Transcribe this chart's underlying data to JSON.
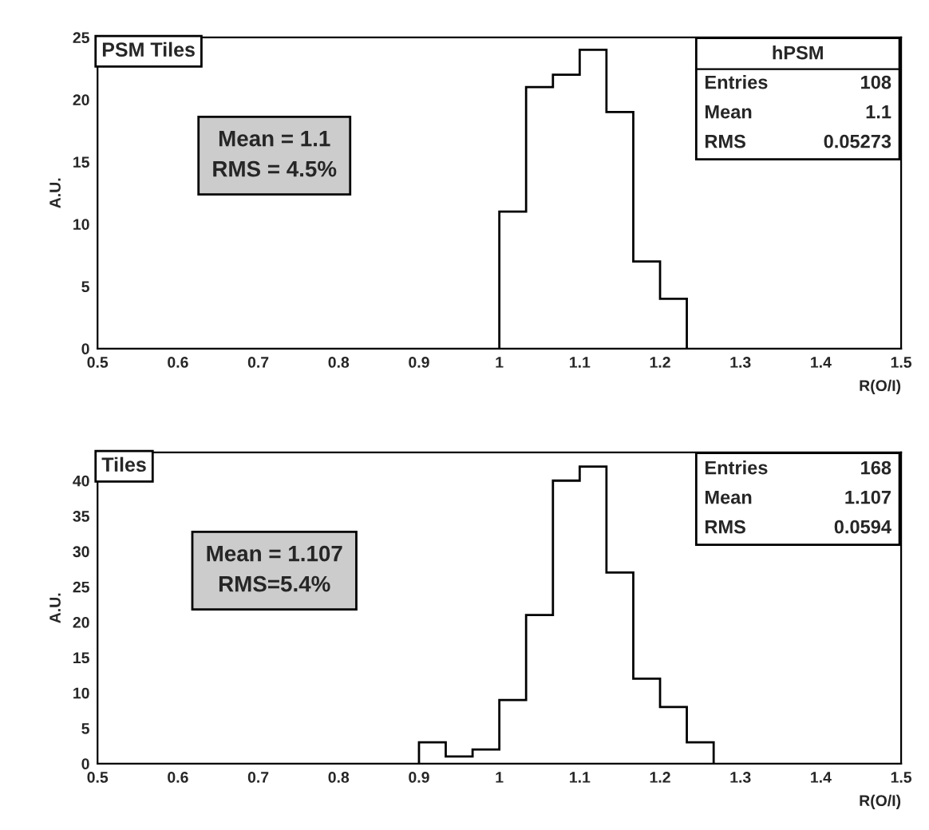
{
  "chart_data": [
    {
      "type": "histogram",
      "title": "PSM Tiles",
      "xlabel": "R(O/I)",
      "ylabel": "A.U.",
      "bins": [
        1.0,
        1.0333,
        1.0667,
        1.1,
        1.1333,
        1.1667,
        1.2,
        1.2333
      ],
      "values": [
        11,
        21,
        22,
        24,
        19,
        7,
        4
      ],
      "color": "#000000",
      "xlim": [
        0.5,
        1.5
      ],
      "xticks": [
        0.5,
        0.6,
        0.7,
        0.8,
        0.9,
        1,
        1.1,
        1.2,
        1.3,
        1.4,
        1.5
      ],
      "ylim": [
        0,
        25
      ],
      "yticks": [
        0,
        5,
        10,
        15,
        20,
        25
      ],
      "grid": false,
      "annotations": [
        "Mean = 1.1\nRMS = 4.5%",
        "hPSM",
        "Entries 108",
        "Mean 1.1",
        "RMS 0.05273"
      ]
    },
    {
      "type": "histogram",
      "title": "Tiles",
      "xlabel": "R(O/I)",
      "ylabel": "A.U.",
      "bins": [
        0.9,
        0.9333,
        0.9667,
        1.0,
        1.0333,
        1.0667,
        1.1,
        1.1333,
        1.1667,
        1.2,
        1.2333,
        1.2667
      ],
      "values": [
        3,
        1,
        2,
        9,
        21,
        40,
        42,
        27,
        12,
        8,
        3
      ],
      "color": "#000000",
      "xlim": [
        0.5,
        1.5
      ],
      "xticks": [
        0.5,
        0.6,
        0.7,
        0.8,
        0.9,
        1,
        1.1,
        1.2,
        1.3,
        1.4,
        1.5
      ],
      "ylim": [
        0,
        44
      ],
      "yticks": [
        0,
        5,
        10,
        15,
        20,
        25,
        30,
        35,
        40
      ],
      "grid": false,
      "annotations": [
        "Mean = 1.107\nRMS=5.4%",
        "Entries 168",
        "Mean 1.107",
        "RMS 0.0594"
      ]
    }
  ]
}
